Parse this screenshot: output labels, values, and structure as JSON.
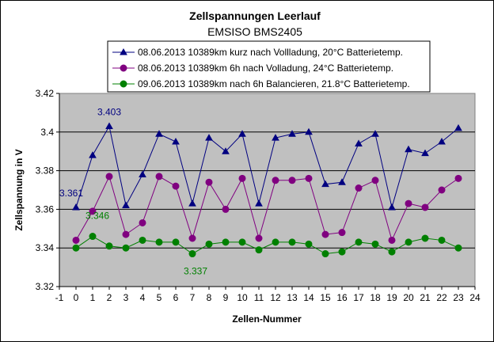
{
  "chart_data": {
    "type": "line",
    "title": "Zellspannungen Leerlauf",
    "subtitle": "EMSISO BMS2405",
    "xlabel": "Zellen-Nummer",
    "ylabel": "Zellspannung in V",
    "xlim": [
      -1,
      24
    ],
    "ylim": [
      3.32,
      3.42
    ],
    "xticks": [
      "-1",
      "0",
      "1",
      "2",
      "3",
      "4",
      "5",
      "6",
      "7",
      "8",
      "9",
      "10",
      "11",
      "12",
      "13",
      "14",
      "15",
      "16",
      "17",
      "18",
      "19",
      "20",
      "21",
      "22",
      "23",
      "24"
    ],
    "yticks": [
      "3.32",
      "3.34",
      "3.36",
      "3.38",
      "3.4",
      "3.42"
    ],
    "grid": true,
    "plot_background": "#c0c0c0",
    "legend_position": "top",
    "x": [
      0,
      1,
      2,
      3,
      4,
      5,
      6,
      7,
      8,
      9,
      10,
      11,
      12,
      13,
      14,
      15,
      16,
      17,
      18,
      19,
      20,
      21,
      22,
      23
    ],
    "series": [
      {
        "name": "08.06.2013 10389km kurz nach Vollladung, 20°C Batterietemp.",
        "color": "#000080",
        "marker": "triangle",
        "values": [
          3.361,
          3.388,
          3.403,
          3.362,
          3.378,
          3.399,
          3.395,
          3.363,
          3.397,
          3.39,
          3.399,
          3.363,
          3.397,
          3.399,
          3.4,
          3.373,
          3.374,
          3.394,
          3.399,
          3.361,
          3.391,
          3.389,
          3.395,
          3.402
        ]
      },
      {
        "name": "08.06.2013 10389km 6h nach Volladung, 24°C Batterietemp.",
        "color": "#800080",
        "marker": "circle",
        "values": [
          3.344,
          3.359,
          3.377,
          3.347,
          3.353,
          3.377,
          3.372,
          3.345,
          3.374,
          3.36,
          3.376,
          3.345,
          3.375,
          3.375,
          3.376,
          3.347,
          3.348,
          3.371,
          3.375,
          3.344,
          3.363,
          3.361,
          3.37,
          3.376
        ]
      },
      {
        "name": "09.06.2013 10389km nach 6h Balancieren, 21.8°C Batterietemp.",
        "color": "#008000",
        "marker": "circle",
        "values": [
          3.34,
          3.346,
          3.341,
          3.34,
          3.344,
          3.343,
          3.343,
          3.337,
          3.342,
          3.343,
          3.343,
          3.339,
          3.343,
          3.343,
          3.342,
          3.337,
          3.338,
          3.343,
          3.342,
          3.338,
          3.343,
          3.345,
          3.344,
          3.34
        ]
      }
    ],
    "annotations": [
      {
        "text": "3.403",
        "x": 2,
        "y": 3.403,
        "series": 0,
        "color": "#000080"
      },
      {
        "text": "3.361",
        "x": 0,
        "y": 3.361,
        "series": 0,
        "color": "#000080"
      },
      {
        "text": "3.346",
        "x": 1,
        "y": 3.346,
        "series": 2,
        "color": "#008000"
      },
      {
        "text": "3.337",
        "x": 7,
        "y": 3.337,
        "series": 2,
        "color": "#008000"
      }
    ]
  }
}
